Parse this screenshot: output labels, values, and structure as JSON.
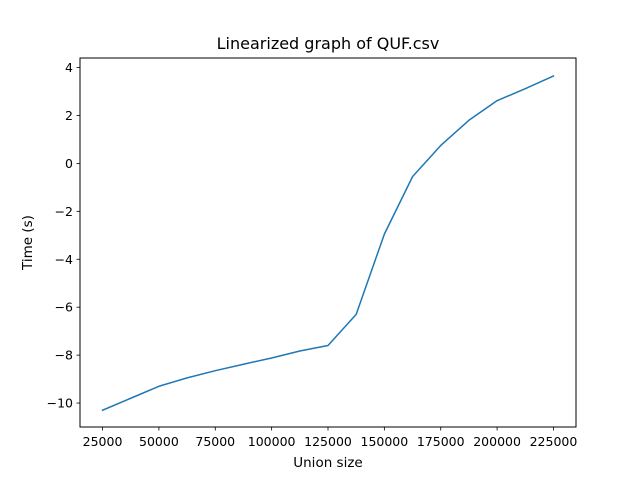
{
  "chart_data": {
    "type": "line",
    "title": "Linearized graph of QUF.csv",
    "xlabel": "Union size",
    "ylabel": "Time  (s)",
    "xlim": [
      15000,
      235000
    ],
    "ylim": [
      -11,
      4.4
    ],
    "xticks": [
      25000,
      50000,
      75000,
      100000,
      125000,
      150000,
      175000,
      200000,
      225000
    ],
    "yticks": [
      -10,
      -8,
      -6,
      -4,
      -2,
      0,
      2,
      4
    ],
    "grid": false,
    "legend": "none",
    "series": [
      {
        "color": "#1f77b4",
        "x": [
          25000,
          37500,
          50000,
          62500,
          75000,
          87500,
          100000,
          112500,
          125000,
          137500,
          150000,
          162500,
          175000,
          187500,
          200000,
          212500,
          225000
        ],
        "y": [
          -10.3,
          -9.8,
          -9.3,
          -8.95,
          -8.65,
          -8.38,
          -8.12,
          -7.83,
          -7.6,
          -6.3,
          -2.95,
          -0.55,
          0.75,
          1.8,
          2.62,
          3.12,
          3.65
        ]
      }
    ]
  }
}
